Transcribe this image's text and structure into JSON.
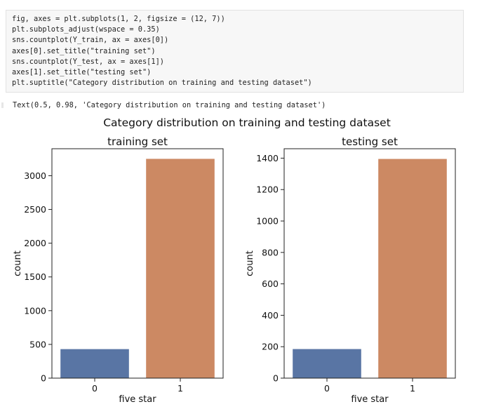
{
  "code_cell": {
    "lines": [
      "fig, axes = plt.subplots(1, 2, figsize = (12, 7))",
      "plt.subplots_adjust(wspace = 0.35)",
      "sns.countplot(Y_train, ax = axes[0])",
      "axes[0].set_title(\"training set\")",
      "sns.countplot(Y_test, ax = axes[1])",
      "axes[1].set_title(\"testing set\")",
      "plt.suptitle(\"Category distribution on training and testing dataset\")"
    ]
  },
  "output_text": "Text(0.5, 0.98, 'Category distribution on training and testing dataset')",
  "figure": {
    "suptitle": "Category distribution on training and testing dataset"
  },
  "colors": {
    "bar_0": "#5975a4",
    "bar_1": "#cc8963"
  },
  "chart_data": [
    {
      "type": "bar",
      "title": "training set",
      "xlabel": "five star",
      "ylabel": "count",
      "categories": [
        "0",
        "1"
      ],
      "values": [
        430,
        3250
      ],
      "ylim": [
        0,
        3400
      ],
      "yticks": [
        0,
        500,
        1000,
        1500,
        2000,
        2500,
        3000
      ]
    },
    {
      "type": "bar",
      "title": "testing set",
      "xlabel": "five star",
      "ylabel": "count",
      "categories": [
        "0",
        "1"
      ],
      "values": [
        185,
        1395
      ],
      "ylim": [
        0,
        1460
      ],
      "yticks": [
        0,
        200,
        400,
        600,
        800,
        1000,
        1200,
        1400
      ]
    }
  ]
}
